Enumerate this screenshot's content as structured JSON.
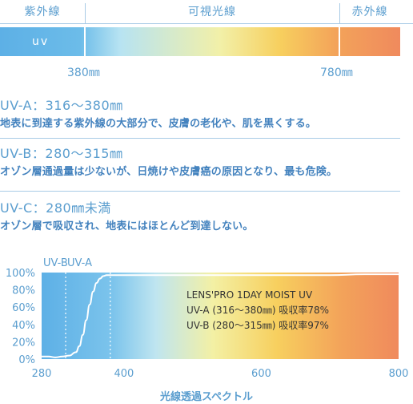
{
  "bands": {
    "uv": "紫外線",
    "visible": "可視光線",
    "ir": "赤外線"
  },
  "bar_tag": "uv",
  "nm_marks": [
    "380㎜",
    "780㎜"
  ],
  "sections": [
    {
      "title": "UV-A：316〜380㎜",
      "desc": "地表に到達する紫外線の大部分で、皮膚の老化や、肌を黒くする。"
    },
    {
      "title": "UV-B：280〜315㎜",
      "desc": "オゾン層通過量は少ないが、日焼けや皮膚癌の原因となり、最も危険。"
    },
    {
      "title": "UV-C：280㎜未満",
      "desc": "オゾン層で吸収され、地表にはほとんど到達しない。"
    }
  ],
  "colors": {
    "accent": "#5b9ecf",
    "curve": "#ffffff",
    "uv": "#5db0e6",
    "yellow": "#f7cf5e",
    "red": "#f08a5d"
  },
  "chart_data": {
    "type": "line",
    "xlabel": "光線透過スペクトル",
    "ylabel": "",
    "xlim": [
      280,
      800
    ],
    "ylim": [
      0,
      100
    ],
    "x_ticks": [
      "280",
      "400",
      "600",
      "800"
    ],
    "y_ticks": [
      "0%",
      "20%",
      "40%",
      "60%",
      "80%",
      "100%"
    ],
    "region_labels": [
      {
        "text": "UV-B",
        "x": 280
      },
      {
        "text": "UV-A",
        "x": 315
      }
    ],
    "dotted_lines_x": [
      315,
      380
    ],
    "grid": false,
    "inset_text": [
      "LENS'PRO 1DAY MOIST UV",
      "UV-A (316〜380㎜) 吸収率78%",
      "UV-B (280〜315㎜) 吸収率97%"
    ],
    "series": [
      {
        "x": [
          280,
          290,
          300,
          310,
          320,
          330,
          335,
          340,
          345,
          350,
          355,
          360,
          365,
          370,
          375,
          380,
          390,
          400,
          450,
          500,
          550,
          600,
          650,
          700,
          750,
          800
        ],
        "y": [
          3,
          3,
          2,
          3,
          4,
          8,
          15,
          28,
          45,
          63,
          78,
          88,
          93,
          96,
          97,
          97,
          97,
          97,
          97,
          97,
          97,
          97,
          97,
          97,
          98,
          98
        ]
      }
    ]
  }
}
